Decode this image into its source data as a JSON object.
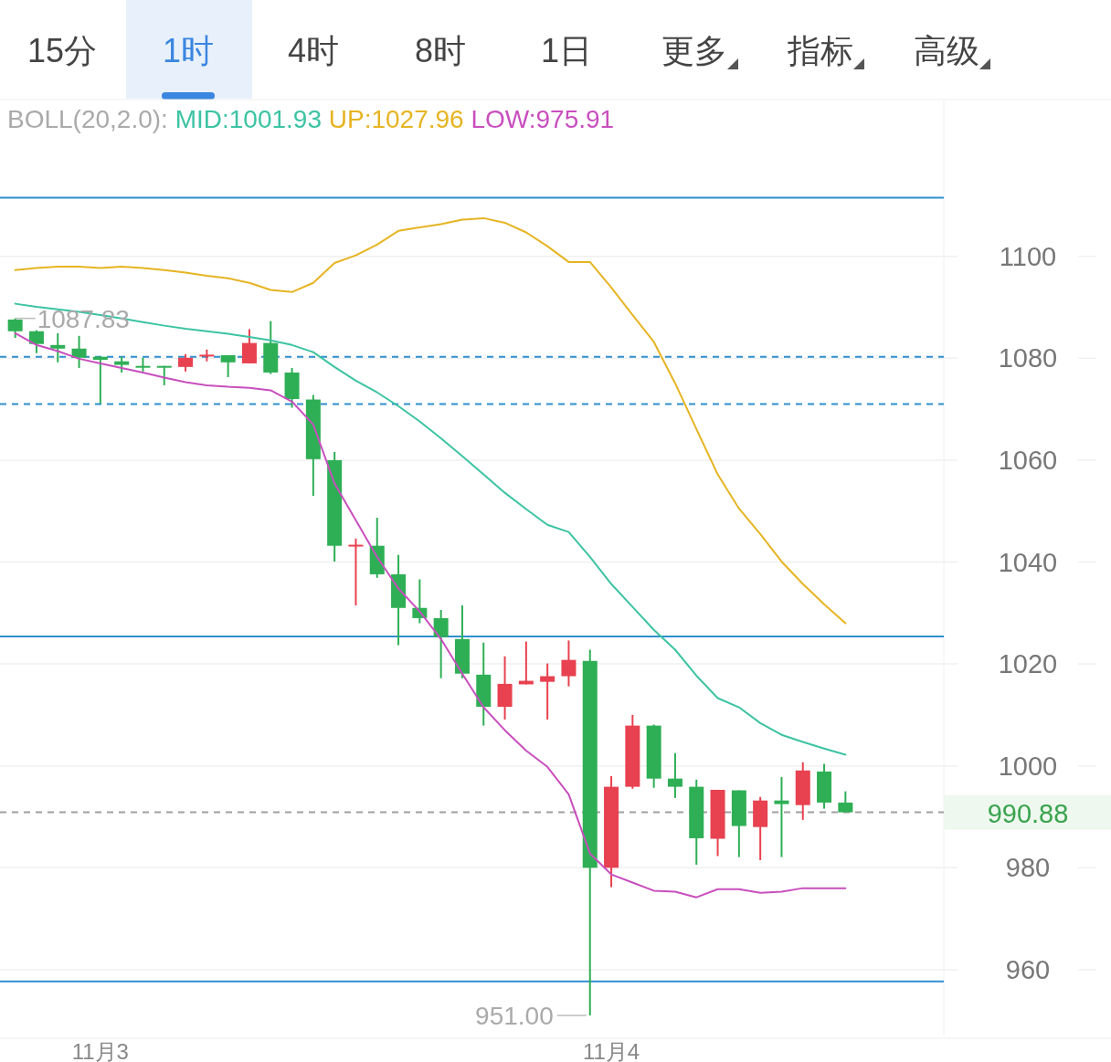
{
  "chart_data": {
    "type": "candlestick",
    "title": "BOLL(20,2.0):",
    "legend": "top",
    "grid": "y",
    "categories": [
      null,
      null,
      null,
      null,
      "11月3",
      null,
      null,
      null,
      null,
      null,
      null,
      null,
      null,
      null,
      null,
      null,
      null,
      null,
      null,
      null,
      null,
      null,
      null,
      null,
      null,
      null,
      null,
      null,
      "11月4",
      null,
      null,
      null,
      null,
      null,
      null,
      null,
      null,
      null,
      null,
      null
    ],
    "ohlc": [
      [
        1087.6,
        1087.83,
        1084.0,
        1085.3
      ],
      [
        1085.3,
        1085.5,
        1081.0,
        1082.8
      ],
      [
        1082.6,
        1084.9,
        1079.2,
        1081.9
      ],
      [
        1081.9,
        1084.4,
        1078.1,
        1080.1
      ],
      [
        1080.3,
        1080.3,
        1071.1,
        1079.7
      ],
      [
        1079.4,
        1080.3,
        1077.2,
        1078.7
      ],
      [
        1078.5,
        1080.1,
        1077.4,
        1078.3
      ],
      [
        1078.5,
        1078.5,
        1074.7,
        1078.3
      ],
      [
        1078.3,
        1080.8,
        1077.4,
        1080.1
      ],
      [
        1080.6,
        1081.7,
        1079.4,
        1080.7
      ],
      [
        1080.6,
        1080.6,
        1076.3,
        1079.2
      ],
      [
        1079.0,
        1085.7,
        1079.0,
        1083.0
      ],
      [
        1083.0,
        1087.3,
        1076.9,
        1077.2
      ],
      [
        1077.2,
        1078.1,
        1070.3,
        1072.0
      ],
      [
        1071.9,
        1072.8,
        1053.0,
        1060.2
      ],
      [
        1060.0,
        1061.6,
        1040.1,
        1043.2
      ],
      [
        1043.3,
        1044.6,
        1031.5,
        1043.4
      ],
      [
        1043.2,
        1048.7,
        1036.9,
        1037.6
      ],
      [
        1037.6,
        1041.4,
        1023.7,
        1031.0
      ],
      [
        1031.0,
        1036.6,
        1028.0,
        1029.0
      ],
      [
        1029.0,
        1030.6,
        1017.2,
        1025.3
      ],
      [
        1024.9,
        1031.5,
        1017.2,
        1018.1
      ],
      [
        1017.9,
        1024.2,
        1007.9,
        1011.6
      ],
      [
        1011.6,
        1021.5,
        1009.1,
        1016.1
      ],
      [
        1016.0,
        1024.4,
        1016.0,
        1016.7
      ],
      [
        1016.5,
        1020.1,
        1009.1,
        1017.6
      ],
      [
        1017.6,
        1024.6,
        1015.6,
        1020.8
      ],
      [
        1020.6,
        1022.8,
        951.0,
        980.0
      ],
      [
        980.0,
        998.0,
        976.2,
        995.9
      ],
      [
        995.9,
        1010.0,
        995.5,
        1007.9
      ],
      [
        1007.9,
        1008.1,
        995.7,
        997.5
      ],
      [
        997.5,
        1002.5,
        993.7,
        995.9
      ],
      [
        995.9,
        997.3,
        980.6,
        985.8
      ],
      [
        985.7,
        995.3,
        982.3,
        995.3
      ],
      [
        995.2,
        995.2,
        982.1,
        988.2
      ],
      [
        988.0,
        993.9,
        981.5,
        993.2
      ],
      [
        993.2,
        997.8,
        982.1,
        992.5
      ],
      [
        992.3,
        1000.7,
        989.4,
        999.1
      ],
      [
        998.9,
        1000.4,
        991.6,
        992.8
      ],
      [
        992.8,
        995.0,
        990.88,
        990.88
      ]
    ],
    "series": [
      {
        "name": "MID:1001.93",
        "type": "line",
        "color": "#3cc3a3",
        "values": [
          1090.7,
          1090.1,
          1089.6,
          1089.1,
          1088.5,
          1087.8,
          1087.1,
          1086.4,
          1085.8,
          1085.3,
          1084.8,
          1084.2,
          1083.5,
          1082.6,
          1081.2,
          1078.3,
          1075.6,
          1073.3,
          1070.6,
          1067.6,
          1064.3,
          1060.8,
          1057.2,
          1053.6,
          1050.4,
          1047.3,
          1045.9,
          1041.0,
          1035.7,
          1031.2,
          1026.7,
          1022.8,
          1017.7,
          1013.3,
          1011.5,
          1008.4,
          1006.1,
          1004.7,
          1003.4,
          1002.2
        ]
      },
      {
        "name": "UP:1027.96",
        "type": "line",
        "color": "#e6b422",
        "values": [
          1097.3,
          1097.7,
          1098.0,
          1098.0,
          1097.7,
          1098.0,
          1097.7,
          1097.3,
          1096.8,
          1096.2,
          1095.7,
          1094.8,
          1093.4,
          1093.0,
          1094.8,
          1098.7,
          1100.2,
          1102.3,
          1105.0,
          1105.7,
          1106.3,
          1107.2,
          1107.5,
          1106.6,
          1104.7,
          1102.0,
          1098.9,
          1098.9,
          1093.9,
          1088.5,
          1083.2,
          1075.1,
          1066.1,
          1057.2,
          1050.5,
          1045.5,
          1040.1,
          1035.7,
          1031.7,
          1028.0
        ]
      },
      {
        "name": "LOW:975.91",
        "type": "line",
        "color": "#c84fbe",
        "values": [
          1084.9,
          1082.6,
          1081.4,
          1079.9,
          1079.0,
          1078.1,
          1077.2,
          1076.2,
          1075.3,
          1074.7,
          1074.4,
          1074.2,
          1073.7,
          1071.5,
          1067.0,
          1055.4,
          1048.2,
          1041.0,
          1034.8,
          1030.3,
          1024.9,
          1018.1,
          1011.5,
          1007.0,
          1003.0,
          999.8,
          994.4,
          982.8,
          978.7,
          977.1,
          975.5,
          975.3,
          974.2,
          975.8,
          975.8,
          975.1,
          975.3,
          976.0,
          976.0,
          976.0
        ]
      }
    ],
    "ylim": [
      946.9,
      1130.6
    ],
    "yticks": [
      960,
      980,
      1000,
      1020,
      1040,
      1060,
      1080,
      1100
    ],
    "ref_lines": [
      {
        "axis": "y",
        "value": 1111.5,
        "color": "#2f8fcf",
        "line_style": "solid"
      },
      {
        "axis": "y",
        "value": 1025.4,
        "color": "#2f8fcf",
        "line_style": "solid"
      },
      {
        "axis": "y",
        "value": 957.7,
        "color": "#2f8fcf",
        "line_style": "solid"
      },
      {
        "axis": "y",
        "value": 1080.3,
        "color": "#2f8fcf",
        "line_style": "dashed"
      },
      {
        "axis": "y",
        "value": 1071.0,
        "color": "#2f8fcf",
        "line_style": "dashed"
      },
      {
        "axis": "y",
        "value": 990.88,
        "label": "990.88",
        "color": "#a0a0a0",
        "line_style": "dashed"
      }
    ],
    "annotations": [
      "15分",
      "1时",
      "4时",
      "8时",
      "1日",
      "更多",
      "指标",
      "高级",
      "1087.83",
      "951.00"
    ]
  }
}
